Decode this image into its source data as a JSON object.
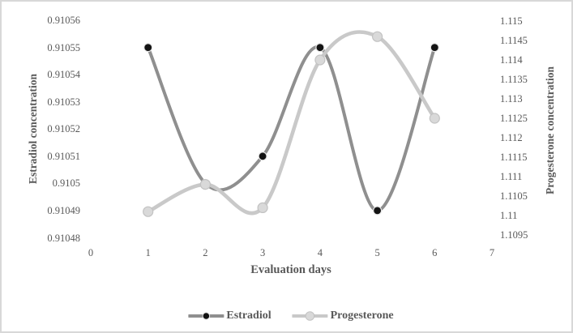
{
  "figure": {
    "background": "#ffffff",
    "border_color": "#d8d8d8",
    "text_color": "#595959"
  },
  "chart_data": {
    "type": "line",
    "title": "",
    "xlabel": "Evaluation days",
    "ylabel_left": "Estradiol concentration",
    "ylabel_right": "Progesterone concentration",
    "xlim": [
      0,
      7
    ],
    "x_ticks": [
      "0",
      "1",
      "2",
      "3",
      "4",
      "5",
      "6",
      "7"
    ],
    "x": [
      1,
      2,
      3,
      4,
      5,
      6
    ],
    "left_axis": {
      "min": 0.91048,
      "max": 0.91056,
      "ticks": [
        "0.91056",
        "0.91055",
        "0.91054",
        "0.91053",
        "0.91052",
        "0.91051",
        "0.9105",
        "0.91049",
        "0.91048"
      ]
    },
    "right_axis": {
      "min": 1.1095,
      "max": 1.115,
      "ticks": [
        "1.115",
        "1.1145",
        "1.114",
        "1.1135",
        "1.113",
        "1.1125",
        "1.112",
        "1.1115",
        "1.111",
        "1.1105",
        "1.11",
        "1.1095"
      ]
    },
    "grid": false,
    "smooth": true,
    "legend_position": "bottom",
    "series": [
      {
        "name": "Estradiol",
        "axis": "left",
        "values": [
          0.91055,
          0.9105,
          0.91051,
          0.91055,
          0.91049,
          0.91055
        ],
        "line_color": "#8f8f8f",
        "line_width": 4,
        "marker_fill": "#141414",
        "marker_stroke": "#e8e8e8",
        "marker_radius": 5
      },
      {
        "name": "Progesterone",
        "axis": "right",
        "values": [
          1.1101,
          1.1108,
          1.1102,
          1.114,
          1.1146,
          1.1125
        ],
        "line_color": "#c9c9c9",
        "line_width": 4.6,
        "marker_fill": "#d9d9d9",
        "marker_stroke": "#c2c2c2",
        "marker_radius": 6
      }
    ]
  }
}
